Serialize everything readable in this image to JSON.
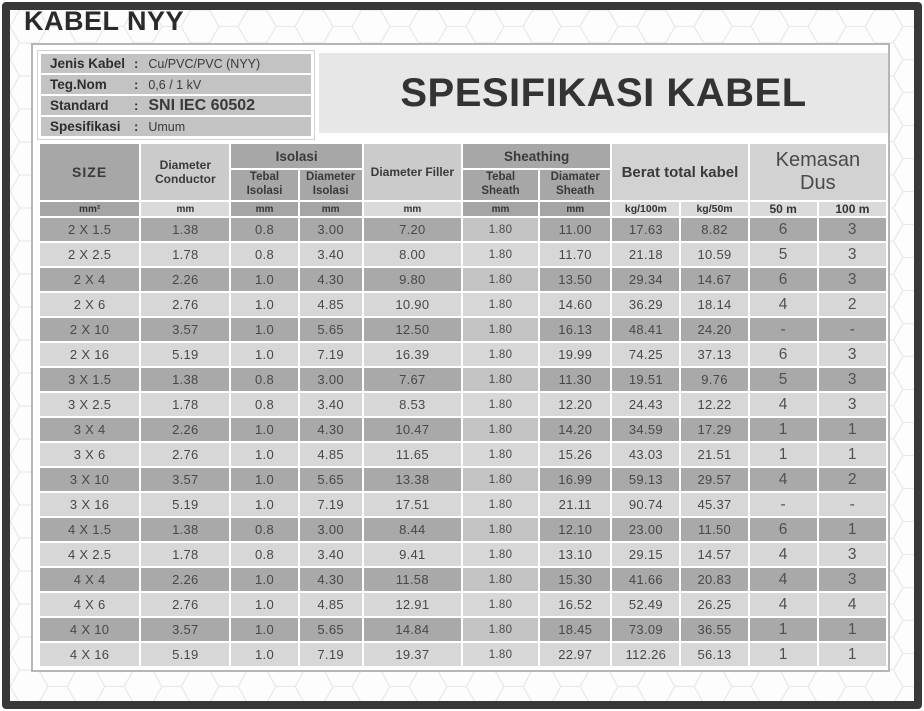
{
  "page_title": "KABEL NYY",
  "info_panel": {
    "rows": [
      {
        "label": "Jenis Kabel",
        "separator": ":",
        "value": "Cu/PVC/PVC (NYY)"
      },
      {
        "label": "Teg.Nom",
        "separator": ":",
        "value": "0,6 / 1 kV"
      },
      {
        "label": "Standard",
        "separator": ":",
        "value": "SNI IEC 60502"
      },
      {
        "label": "Spesifikasi",
        "separator": ":",
        "value": "Umum"
      }
    ]
  },
  "spec_title": "SPESIFIKASI KABEL",
  "table": {
    "headers": {
      "size": "SIZE",
      "diameter_conductor": "Diameter Conductor",
      "isolasi_group": "Isolasi",
      "tebal_isolasi": "Tebal Isolasi",
      "diameter_isolasi": "Diameter Isolasi",
      "diameter_filler": "Diameter Filler",
      "sheathing_group": "Sheathing",
      "tebal_sheath": "Tebal Sheath",
      "diamater_sheath": "Diamater Sheath",
      "berat_total_kabel": "Berat total kabel",
      "kemasan_dus": "Kemasan Dus"
    },
    "units": [
      "mm²",
      "mm",
      "mm",
      "mm",
      "mm",
      "mm",
      "mm",
      "kg/100m",
      "kg/50m",
      "50 m",
      "100 m"
    ],
    "rows": [
      [
        "2 X 1.5",
        "1.38",
        "0.8",
        "3.00",
        "7.20",
        "1.80",
        "11.00",
        "17.63",
        "8.82",
        "6",
        "3"
      ],
      [
        "2 X 2.5",
        "1.78",
        "0.8",
        "3.40",
        "8.00",
        "1.80",
        "11.70",
        "21.18",
        "10.59",
        "5",
        "3"
      ],
      [
        "2 X 4",
        "2.26",
        "1.0",
        "4.30",
        "9.80",
        "1.80",
        "13.50",
        "29.34",
        "14.67",
        "6",
        "3"
      ],
      [
        "2 X 6",
        "2.76",
        "1.0",
        "4.85",
        "10.90",
        "1.80",
        "14.60",
        "36.29",
        "18.14",
        "4",
        "2"
      ],
      [
        "2 X 10",
        "3.57",
        "1.0",
        "5.65",
        "12.50",
        "1.80",
        "16.13",
        "48.41",
        "24.20",
        "-",
        "-"
      ],
      [
        "2 X 16",
        "5.19",
        "1.0",
        "7.19",
        "16.39",
        "1.80",
        "19.99",
        "74.25",
        "37.13",
        "6",
        "3"
      ],
      [
        "3 X 1.5",
        "1.38",
        "0.8",
        "3.00",
        "7.67",
        "1.80",
        "11.30",
        "19.51",
        "9.76",
        "5",
        "3"
      ],
      [
        "3 X 2.5",
        "1.78",
        "0.8",
        "3.40",
        "8.53",
        "1.80",
        "12.20",
        "24.43",
        "12.22",
        "4",
        "3"
      ],
      [
        "3 X 4",
        "2.26",
        "1.0",
        "4.30",
        "10.47",
        "1.80",
        "14.20",
        "34.59",
        "17.29",
        "1",
        "1"
      ],
      [
        "3 X 6",
        "2.76",
        "1.0",
        "4.85",
        "11.65",
        "1.80",
        "15.26",
        "43.03",
        "21.51",
        "1",
        "1"
      ],
      [
        "3 X 10",
        "3.57",
        "1.0",
        "5.65",
        "13.38",
        "1.80",
        "16.99",
        "59.13",
        "29.57",
        "4",
        "2"
      ],
      [
        "3 X 16",
        "5.19",
        "1.0",
        "7.19",
        "17.51",
        "1.80",
        "21.11",
        "90.74",
        "45.37",
        "-",
        "-"
      ],
      [
        "4 X 1.5",
        "1.38",
        "0.8",
        "3.00",
        "8.44",
        "1.80",
        "12.10",
        "23.00",
        "11.50",
        "6",
        "1"
      ],
      [
        "4 X 2.5",
        "1.78",
        "0.8",
        "3.40",
        "9.41",
        "1.80",
        "13.10",
        "29.15",
        "14.57",
        "4",
        "3"
      ],
      [
        "4 X 4",
        "2.26",
        "1.0",
        "4.30",
        "11.58",
        "1.80",
        "15.30",
        "41.66",
        "20.83",
        "4",
        "3"
      ],
      [
        "4 X 6",
        "2.76",
        "1.0",
        "4.85",
        "12.91",
        "1.80",
        "16.52",
        "52.49",
        "26.25",
        "4",
        "4"
      ],
      [
        "4 X 10",
        "3.57",
        "1.0",
        "5.65",
        "14.84",
        "1.80",
        "18.45",
        "73.09",
        "36.55",
        "1",
        "1"
      ],
      [
        "4 X 16",
        "5.19",
        "1.0",
        "7.19",
        "19.37",
        "1.80",
        "22.97",
        "112.26",
        "56.13",
        "1",
        "1"
      ]
    ]
  },
  "colors": {
    "frame": "#383838",
    "row_dark": "#a9a9a9",
    "row_light": "#d7d7d7",
    "header_dark": "#a7a7a7",
    "header_light": "#cbcbcb",
    "title_box": "#e7e7e7",
    "info_bar": "#c3c3c3"
  }
}
